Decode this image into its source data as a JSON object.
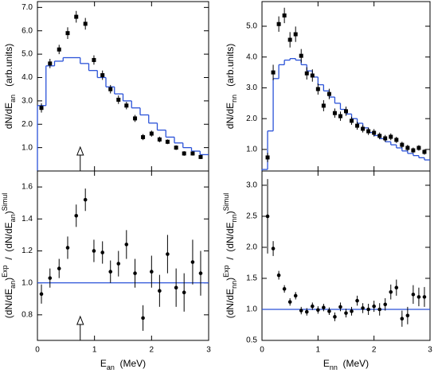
{
  "chart_data": [
    {
      "type": "scatter",
      "panel": "top-left",
      "y_label": [
        {
          "text": "dN/dE",
          "style": ""
        },
        {
          "text": "an",
          "style": "sub"
        },
        {
          "text": "   (arb.units)",
          "style": ""
        }
      ],
      "xlim": [
        0,
        3
      ],
      "xticks": [
        0,
        1,
        2,
        3
      ],
      "ylim": [
        0,
        7.25
      ],
      "yticks": [
        {
          "value": 1,
          "label": "1.0"
        },
        {
          "value": 2,
          "label": "2.0"
        },
        {
          "value": 3,
          "label": "3.0"
        },
        {
          "value": 4,
          "label": "4.0"
        },
        {
          "value": 5,
          "label": "5.0"
        },
        {
          "value": 6,
          "label": "6.0"
        },
        {
          "value": 7,
          "label": "7.0"
        }
      ],
      "points": {
        "marker": "square",
        "color": "#000000",
        "x": [
          0.07,
          0.22,
          0.38,
          0.53,
          0.68,
          0.84,
          0.99,
          1.14,
          1.28,
          1.42,
          1.56,
          1.71,
          1.85,
          2.0,
          2.14,
          2.28,
          2.43,
          2.57,
          2.72,
          2.86
        ],
        "values": [
          2.7,
          4.6,
          5.2,
          5.9,
          6.6,
          6.3,
          4.75,
          4.1,
          3.5,
          3.05,
          2.8,
          2.25,
          1.45,
          1.6,
          1.35,
          1.25,
          1.0,
          0.75,
          0.75,
          0.6
        ],
        "errors": [
          0.2,
          0.2,
          0.2,
          0.25,
          0.25,
          0.25,
          0.2,
          0.2,
          0.18,
          0.18,
          0.16,
          0.15,
          0.13,
          0.13,
          0.12,
          0.1,
          0.1,
          0.1,
          0.09,
          0.09
        ]
      },
      "model": {
        "color": "#2a52d8",
        "bins": [
          0,
          0.15,
          0.3,
          0.45,
          0.6,
          0.75,
          0.9,
          1.05,
          1.2,
          1.35,
          1.5,
          1.65,
          1.8,
          1.95,
          2.1,
          2.25,
          2.4,
          2.55,
          2.7,
          2.85,
          3.0
        ],
        "counts": [
          2.8,
          4.5,
          4.7,
          4.85,
          4.85,
          4.6,
          4.3,
          4.0,
          3.6,
          3.3,
          3.0,
          2.7,
          2.4,
          2.05,
          1.75,
          1.45,
          1.2,
          1.0,
          0.85,
          0.7
        ]
      },
      "arrow_x": 0.75
    },
    {
      "type": "scatter",
      "panel": "top-right",
      "y_label": [
        {
          "text": "dN/dE",
          "style": ""
        },
        {
          "text": "nn",
          "style": "sub"
        },
        {
          "text": "   (arb.units)",
          "style": ""
        }
      ],
      "xlim": [
        0,
        3
      ],
      "xticks": [
        0,
        1,
        2,
        3
      ],
      "ylim": [
        0.3,
        5.8
      ],
      "yticks": [
        {
          "value": 1,
          "label": "1.0"
        },
        {
          "value": 2,
          "label": "2.0"
        },
        {
          "value": 3,
          "label": "3.0"
        },
        {
          "value": 4,
          "label": "4.0"
        },
        {
          "value": 5,
          "label": "5.0"
        }
      ],
      "points": {
        "marker": "square",
        "color": "#000000",
        "x": [
          0.1,
          0.2,
          0.3,
          0.4,
          0.5,
          0.6,
          0.7,
          0.8,
          0.9,
          1.0,
          1.1,
          1.2,
          1.3,
          1.4,
          1.5,
          1.6,
          1.7,
          1.8,
          1.9,
          2.0,
          2.1,
          2.2,
          2.3,
          2.4,
          2.5,
          2.6,
          2.7,
          2.8,
          2.9
        ],
        "values": [
          0.74,
          3.5,
          5.07,
          5.35,
          4.56,
          4.74,
          4.04,
          3.47,
          3.4,
          2.96,
          2.42,
          2.8,
          2.18,
          2.08,
          2.24,
          1.93,
          1.77,
          1.67,
          1.59,
          1.54,
          1.44,
          1.36,
          1.41,
          1.31,
          1.15,
          1.05,
          0.97,
          1.05,
          0.92
        ],
        "errors": [
          0.15,
          0.25,
          0.25,
          0.25,
          0.25,
          0.25,
          0.22,
          0.2,
          0.2,
          0.18,
          0.18,
          0.17,
          0.15,
          0.15,
          0.15,
          0.13,
          0.13,
          0.12,
          0.12,
          0.12,
          0.11,
          0.11,
          0.11,
          0.1,
          0.1,
          0.1,
          0.09,
          0.09,
          0.09
        ]
      },
      "model": {
        "color": "#2a52d8",
        "bins": [
          0,
          0.1,
          0.2,
          0.3,
          0.4,
          0.5,
          0.6,
          0.7,
          0.8,
          0.9,
          1.0,
          1.1,
          1.2,
          1.3,
          1.4,
          1.5,
          1.6,
          1.7,
          1.8,
          1.9,
          2.0,
          2.1,
          2.2,
          2.3,
          2.4,
          2.5,
          2.6,
          2.7,
          2.8,
          2.9,
          3.0
        ],
        "counts": [
          0.35,
          1.6,
          3.3,
          3.75,
          3.9,
          3.95,
          3.9,
          3.75,
          3.55,
          3.35,
          3.1,
          2.9,
          2.7,
          2.5,
          2.3,
          2.15,
          2.0,
          1.85,
          1.7,
          1.55,
          1.45,
          1.35,
          1.25,
          1.15,
          1.05,
          0.95,
          0.87,
          0.8,
          0.73,
          0.66
        ]
      }
    },
    {
      "type": "scatter",
      "panel": "bottom-left",
      "y_label": [
        {
          "text": "(dN/dE",
          "style": ""
        },
        {
          "text": "an",
          "style": "sub"
        },
        {
          "text": ")",
          "style": ""
        },
        {
          "text": "Exp",
          "style": "sup"
        },
        {
          "text": "  /  (dN/dE",
          "style": ""
        },
        {
          "text": "an",
          "style": "sub"
        },
        {
          "text": ")",
          "style": ""
        },
        {
          "text": "Simul",
          "style": "sup"
        }
      ],
      "x_label": [
        {
          "text": "E",
          "style": ""
        },
        {
          "text": "an",
          "style": "sub"
        },
        {
          "text": "  (MeV)",
          "style": ""
        }
      ],
      "xlim": [
        0,
        3
      ],
      "xticks": [
        0,
        1,
        2,
        3
      ],
      "ylim": [
        0.64,
        1.7
      ],
      "yticks": [
        0.8,
        {
          "value": 1,
          "label": "1.0"
        },
        1.2,
        1.4,
        1.6
      ],
      "reference_line": 1,
      "reference_color": "#2a52d8",
      "points": {
        "marker": "circle",
        "color": "#000000",
        "x": [
          0.07,
          0.22,
          0.38,
          0.53,
          0.68,
          0.84,
          0.99,
          1.14,
          1.28,
          1.42,
          1.56,
          1.71,
          1.85,
          2.0,
          2.14,
          2.28,
          2.43,
          2.57,
          2.72,
          2.86
        ],
        "values": [
          0.93,
          1.03,
          1.09,
          1.22,
          1.42,
          1.52,
          1.2,
          1.19,
          1.07,
          1.12,
          1.24,
          1.06,
          0.78,
          1.07,
          0.95,
          1.18,
          0.97,
          0.94,
          1.13,
          1.06
        ],
        "errors": [
          0.06,
          0.06,
          0.06,
          0.07,
          0.07,
          0.07,
          0.07,
          0.07,
          0.07,
          0.08,
          0.09,
          0.09,
          0.08,
          0.1,
          0.1,
          0.12,
          0.12,
          0.12,
          0.14,
          0.14
        ]
      },
      "arrow_x": 0.75
    },
    {
      "type": "scatter",
      "panel": "bottom-right",
      "y_label": [
        {
          "text": "(dN/dE",
          "style": ""
        },
        {
          "text": "nn",
          "style": "sub"
        },
        {
          "text": ")",
          "style": ""
        },
        {
          "text": "Exp",
          "style": "sup"
        },
        {
          "text": "  /  (dN/dE",
          "style": ""
        },
        {
          "text": "nn",
          "style": "sub"
        },
        {
          "text": ")",
          "style": ""
        },
        {
          "text": "Simul",
          "style": "sup"
        }
      ],
      "x_label": [
        {
          "text": "E",
          "style": ""
        },
        {
          "text": "nn",
          "style": "sub"
        },
        {
          "text": "  (MeV)",
          "style": ""
        }
      ],
      "xlim": [
        0,
        3
      ],
      "xticks": [
        0,
        1,
        2,
        3
      ],
      "ylim": [
        0.5,
        3.23
      ],
      "yticks": [
        0.5,
        {
          "value": 1,
          "label": "1.0"
        },
        1.5,
        {
          "value": 2,
          "label": "2.0"
        },
        2.5,
        {
          "value": 3,
          "label": "3.0"
        }
      ],
      "reference_line": 1,
      "reference_color": "#2a52d8",
      "points": {
        "marker": "circle",
        "color": "#000000",
        "x": [
          0.1,
          0.2,
          0.3,
          0.4,
          0.5,
          0.6,
          0.7,
          0.8,
          0.9,
          1.0,
          1.1,
          1.2,
          1.3,
          1.4,
          1.5,
          1.6,
          1.7,
          1.8,
          1.9,
          2.0,
          2.1,
          2.2,
          2.3,
          2.4,
          2.5,
          2.6,
          2.7,
          2.8,
          2.9
        ],
        "values": [
          2.5,
          1.98,
          1.55,
          1.33,
          1.12,
          1.22,
          0.98,
          0.96,
          1.05,
          0.99,
          1.03,
          0.97,
          0.88,
          1.04,
          0.94,
          0.97,
          1.14,
          1.02,
          1.0,
          1.05,
          1.0,
          1.08,
          1.28,
          1.35,
          0.85,
          0.9,
          1.24,
          1.2,
          1.2
        ],
        "errors": [
          0.6,
          0.12,
          0.07,
          0.06,
          0.06,
          0.06,
          0.06,
          0.06,
          0.06,
          0.06,
          0.06,
          0.06,
          0.07,
          0.07,
          0.07,
          0.07,
          0.08,
          0.08,
          0.09,
          0.09,
          0.1,
          0.1,
          0.12,
          0.13,
          0.13,
          0.14,
          0.15,
          0.15,
          0.16
        ]
      }
    }
  ]
}
